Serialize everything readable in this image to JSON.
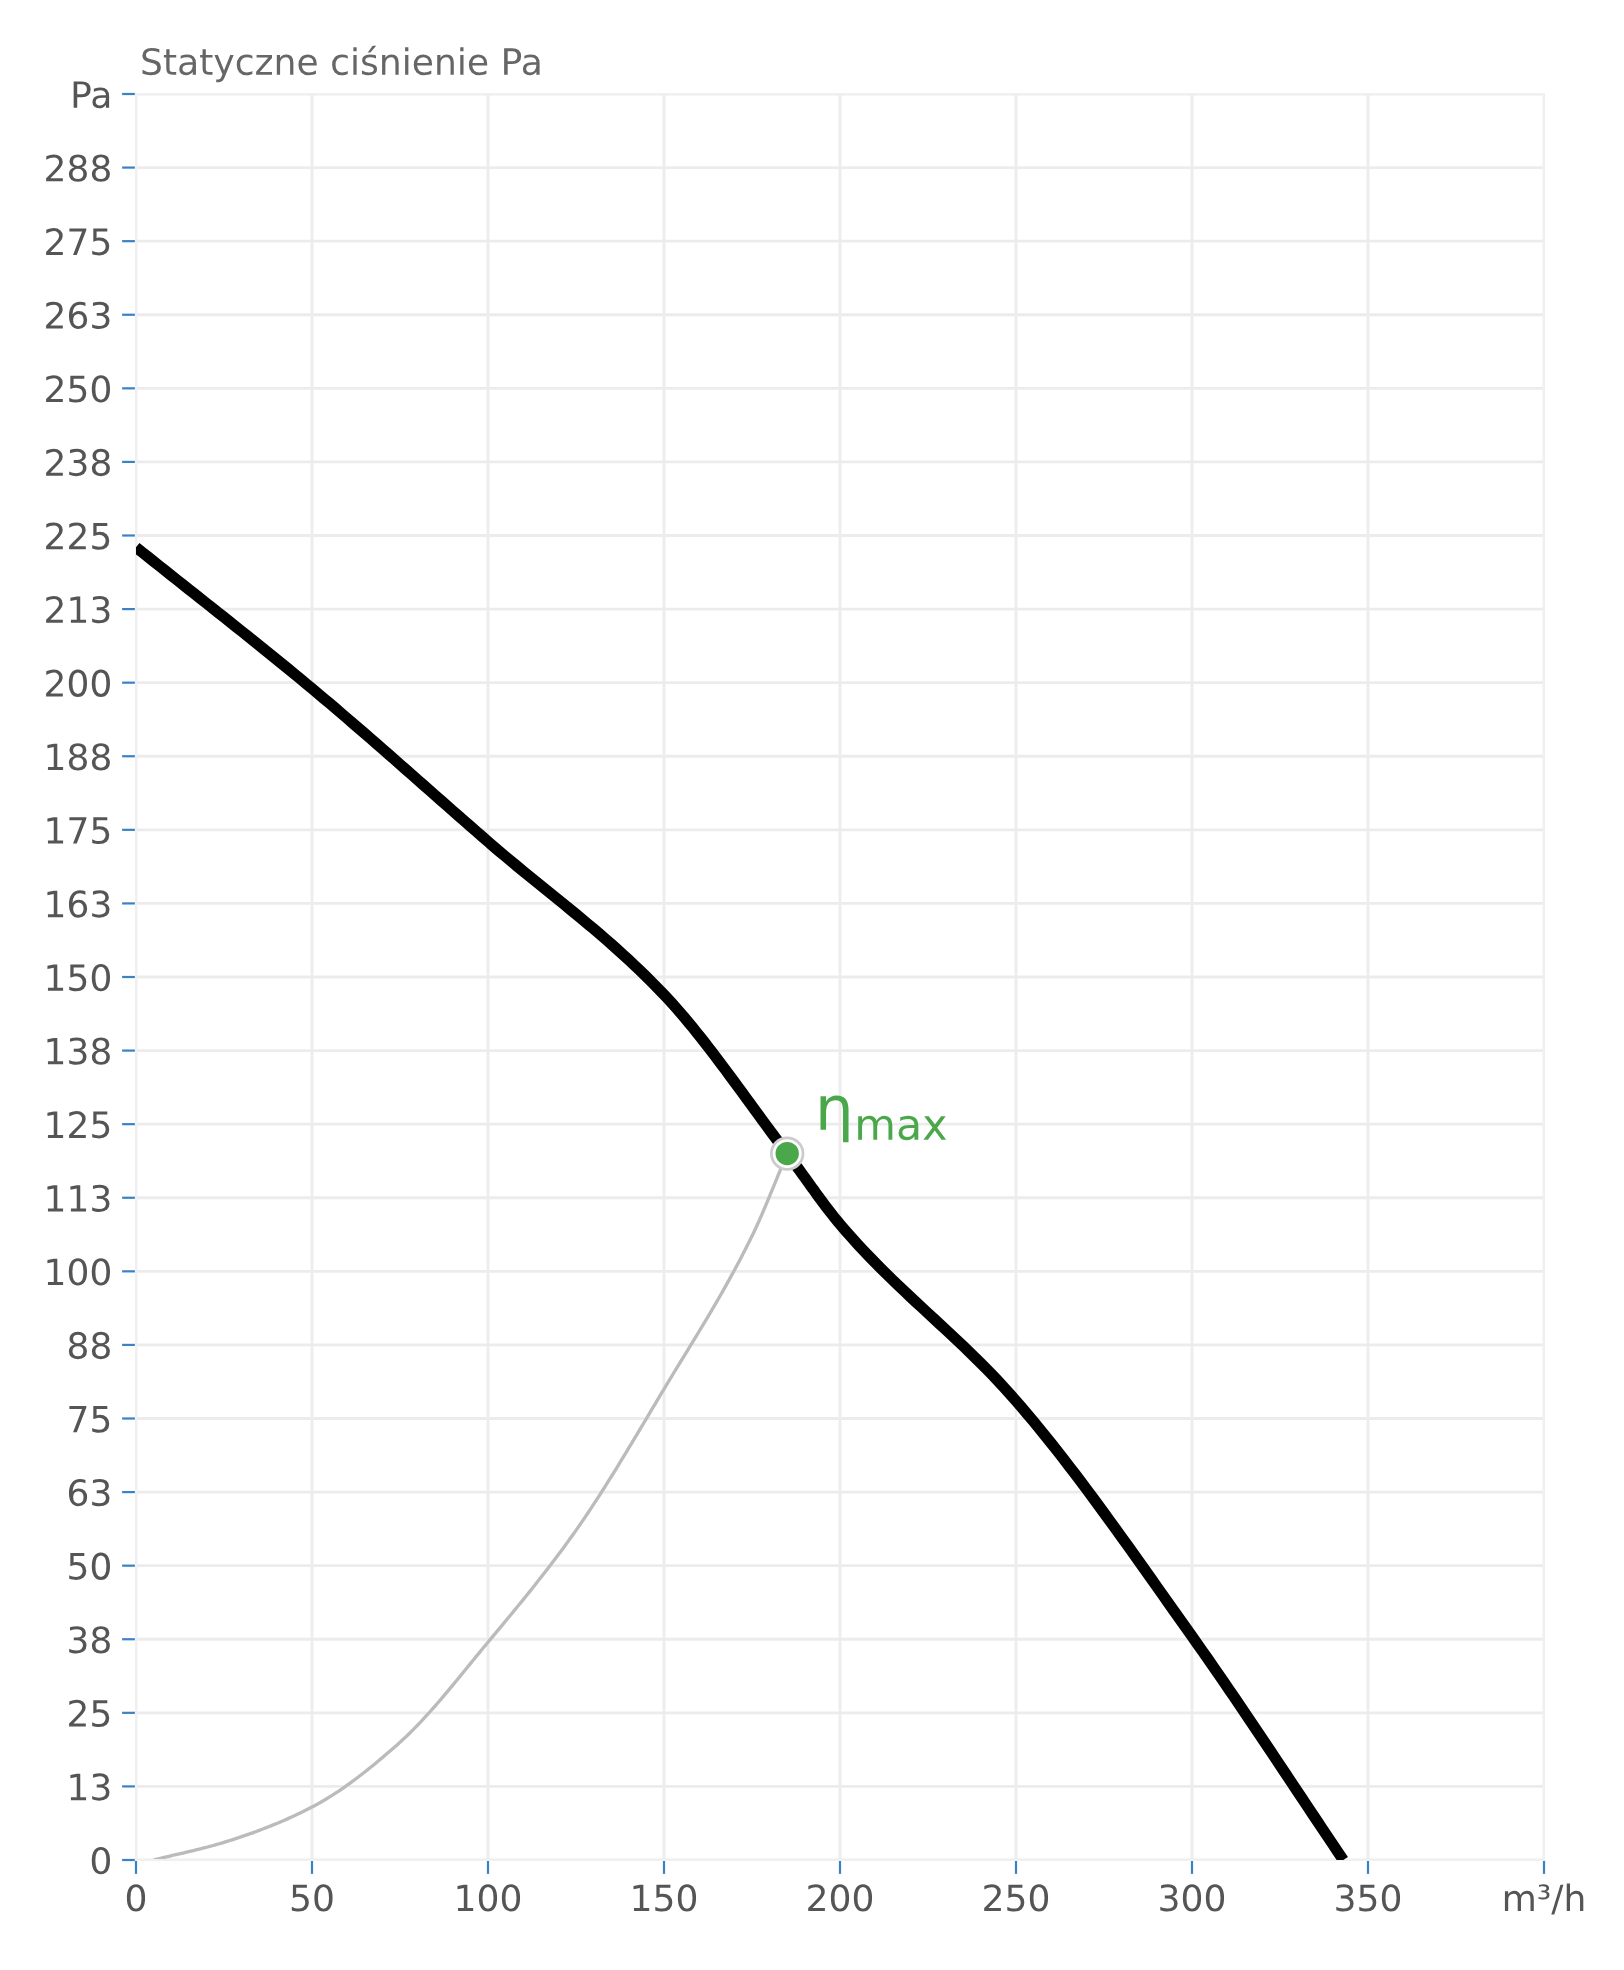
{
  "chart_data": {
    "type": "line",
    "title": "Statyczne ciśnienie Pa",
    "xlim": [
      0,
      400
    ],
    "xticks": [
      0,
      50,
      100,
      150,
      200,
      250,
      300,
      350,
      {
        "value": 400,
        "label": "m³/h"
      }
    ],
    "ylim": [
      0,
      300
    ],
    "yticks": [
      0,
      {
        "value": 12.5,
        "label": "13"
      },
      25,
      {
        "value": 37.5,
        "label": "38"
      },
      50,
      {
        "value": 62.5,
        "label": "63"
      },
      75,
      {
        "value": 87.5,
        "label": "88"
      },
      100,
      {
        "value": 112.5,
        "label": "113"
      },
      125,
      {
        "value": 137.5,
        "label": "138"
      },
      150,
      {
        "value": 162.5,
        "label": "163"
      },
      175,
      {
        "value": 187.5,
        "label": "188"
      },
      200,
      {
        "value": 212.5,
        "label": "213"
      },
      225,
      {
        "value": 237.5,
        "label": "238"
      },
      250,
      {
        "value": 262.5,
        "label": "263"
      },
      275,
      {
        "value": 287.5,
        "label": "288"
      },
      {
        "value": 300,
        "label": "Pa"
      }
    ],
    "grid": true,
    "line_style": "solid",
    "series": [
      {
        "marker": "none",
        "color": "#000000",
        "x": [
          0,
          50,
          100,
          150,
          185,
          200,
          250,
          300,
          343
        ],
        "values": [
          223,
          199,
          173,
          147,
          120,
          108,
          78,
          38,
          0
        ]
      },
      {
        "marker": "none",
        "color": "#bbbbbb",
        "x": [
          5,
          25,
          50,
          75,
          100,
          125,
          150,
          175,
          185
        ],
        "values": [
          0,
          3,
          9,
          20,
          37,
          56,
          80,
          106,
          120
        ]
      },
      {
        "type": "scatter",
        "marker": "circle",
        "color": "#4aa84a",
        "x": [
          185
        ],
        "values": [
          120
        ]
      }
    ],
    "annotations": [
      {
        "text": "η$_{max}$",
        "x": 185,
        "y": 120
      }
    ]
  }
}
